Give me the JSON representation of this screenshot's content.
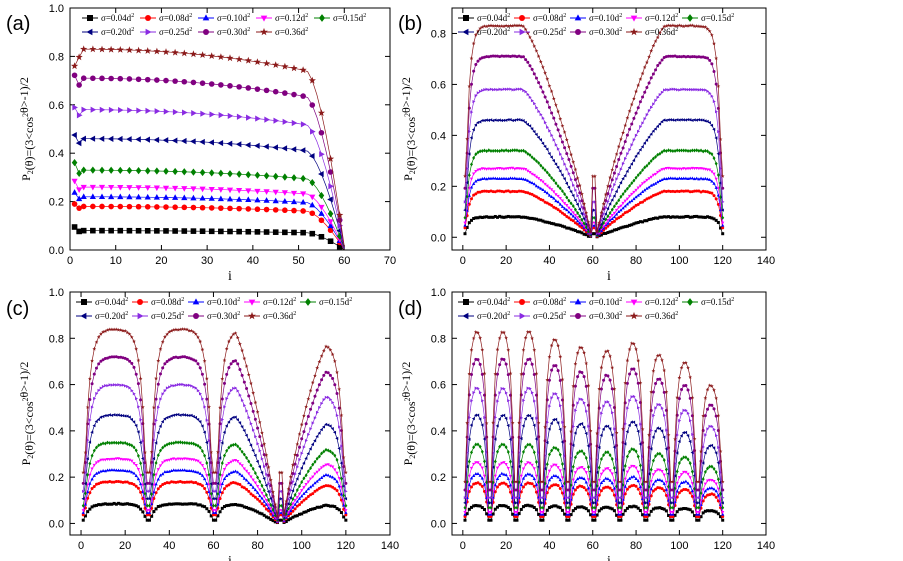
{
  "chart_data": [
    {
      "type": "line",
      "panel_label": "(a)",
      "xlabel": "i",
      "ylabel": {
        "p": "P",
        "sub": "2",
        "mid": "(θ)=(3<cos",
        "sup": "2",
        "end": "θ>-1)/2"
      },
      "xlim": [
        0,
        70
      ],
      "ylim": [
        0.0,
        1.0
      ],
      "xticks": [
        0,
        10,
        20,
        30,
        40,
        50,
        60,
        70
      ],
      "yticks": [
        "0.0",
        "0.2",
        "0.4",
        "0.6",
        "0.8",
        "1.0"
      ],
      "chains": [
        [
          1,
          60
        ]
      ],
      "legend_rows": [
        [
          0,
          1,
          2,
          3,
          4
        ],
        [
          5,
          6,
          7,
          8
        ]
      ]
    },
    {
      "type": "line",
      "panel_label": "(b)",
      "xlabel": "i",
      "ylabel": {
        "p": "P",
        "sub": "2",
        "mid": "(θ)=(3<cos",
        "sup": "2",
        "end": "θ>-1)/2"
      },
      "xlim": [
        -5,
        140
      ],
      "ylim": [
        -0.05,
        0.9
      ],
      "xticks": [
        0,
        20,
        40,
        60,
        80,
        100,
        120,
        140
      ],
      "yticks": [
        "0.0",
        "0.2",
        "0.4",
        "0.6",
        "0.8"
      ],
      "chains": [
        [
          1,
          60
        ],
        [
          61,
          120
        ]
      ],
      "legend_rows": [
        [
          0,
          1,
          2,
          3,
          4
        ],
        [
          5,
          6,
          7,
          8
        ]
      ]
    },
    {
      "type": "line",
      "panel_label": "(c)",
      "xlabel": "i",
      "ylabel": {
        "p": "P",
        "sub": "2",
        "mid": "(θ)=(3<cos",
        "sup": "2",
        "end": "θ>-1)/2"
      },
      "xlim": [
        -5,
        140
      ],
      "ylim": [
        -0.05,
        1.0
      ],
      "xticks": [
        0,
        20,
        40,
        60,
        80,
        100,
        120,
        140
      ],
      "yticks": [
        "0.0",
        "0.2",
        "0.4",
        "0.6",
        "0.8",
        "1.0"
      ],
      "chains": [
        [
          1,
          30
        ],
        [
          31,
          60
        ],
        [
          61,
          90
        ],
        [
          91,
          120
        ]
      ],
      "legend_rows": [
        [
          0,
          1,
          2,
          3,
          4
        ],
        [
          5,
          6,
          7,
          8
        ]
      ]
    },
    {
      "type": "line",
      "panel_label": "(d)",
      "xlabel": "i",
      "ylabel": {
        "p": "P",
        "sub": "2",
        "mid": "(θ)=(3<cos",
        "sup": "2",
        "end": "θ>-1)/2"
      },
      "xlim": [
        -5,
        140
      ],
      "ylim": [
        -0.05,
        1.0
      ],
      "xticks": [
        0,
        20,
        40,
        60,
        80,
        100,
        120,
        140
      ],
      "yticks": [
        "0.0",
        "0.2",
        "0.4",
        "0.6",
        "0.8",
        "1.0"
      ],
      "chains": [
        [
          1,
          12
        ],
        [
          13,
          24
        ],
        [
          25,
          36
        ],
        [
          37,
          48
        ],
        [
          49,
          60
        ],
        [
          61,
          72
        ],
        [
          73,
          84
        ],
        [
          85,
          96
        ],
        [
          97,
          108
        ],
        [
          109,
          120
        ]
      ],
      "legend_rows": [
        [
          0,
          1,
          2,
          3,
          4
        ],
        [
          5,
          6,
          7,
          8
        ]
      ]
    }
  ],
  "series": [
    {
      "name": "σ=0.04d",
      "sup": "2",
      "color": "#000000",
      "marker": "square",
      "plateau": [
        0.08,
        0.08,
        0.085,
        0.08
      ],
      "fall": [
        0.1,
        0.02,
        0.02,
        0.02
      ]
    },
    {
      "name": "σ=0.08d",
      "sup": "2",
      "color": "#ff0000",
      "marker": "circle",
      "plateau": [
        0.18,
        0.18,
        0.18,
        0.18
      ],
      "fall": [
        0.2,
        0.05,
        0.05,
        0.04
      ]
    },
    {
      "name": "σ=0.10d",
      "sup": "2",
      "color": "#0000ff",
      "marker": "triangle",
      "plateau": [
        0.22,
        0.23,
        0.23,
        0.22
      ],
      "fall": [
        0.25,
        0.06,
        0.06,
        0.05
      ]
    },
    {
      "name": "σ=0.12d",
      "sup": "2",
      "color": "#ff00ff",
      "marker": "tridown",
      "plateau": [
        0.26,
        0.27,
        0.28,
        0.27
      ],
      "fall": [
        0.3,
        0.07,
        0.07,
        0.06
      ]
    },
    {
      "name": "σ=0.15d",
      "sup": "2",
      "color": "#008000",
      "marker": "diamond",
      "plateau": [
        0.33,
        0.34,
        0.35,
        0.35
      ],
      "fall": [
        0.38,
        0.09,
        0.09,
        0.08
      ]
    },
    {
      "name": "σ=0.20d",
      "sup": "2",
      "color": "#000080",
      "marker": "triangle-left",
      "plateau": [
        0.46,
        0.46,
        0.47,
        0.48
      ],
      "fall": [
        0.5,
        0.12,
        0.12,
        0.1
      ]
    },
    {
      "name": "σ=0.25d",
      "sup": "2",
      "color": "#8a2be2",
      "marker": "triangle-right",
      "plateau": [
        0.58,
        0.58,
        0.6,
        0.6
      ],
      "fall": [
        0.62,
        0.15,
        0.15,
        0.12
      ]
    },
    {
      "name": "σ=0.30d",
      "sup": "2",
      "color": "#800080",
      "marker": "circle",
      "plateau": [
        0.71,
        0.71,
        0.72,
        0.73
      ],
      "fall": [
        0.76,
        0.2,
        0.18,
        0.15
      ]
    },
    {
      "name": "σ=0.36d",
      "sup": "2",
      "color": "#8b1a1a",
      "marker": "star",
      "plateau": [
        0.83,
        0.83,
        0.84,
        0.85
      ],
      "fall": [
        0.8,
        0.24,
        0.22,
        0.18
      ]
    }
  ]
}
